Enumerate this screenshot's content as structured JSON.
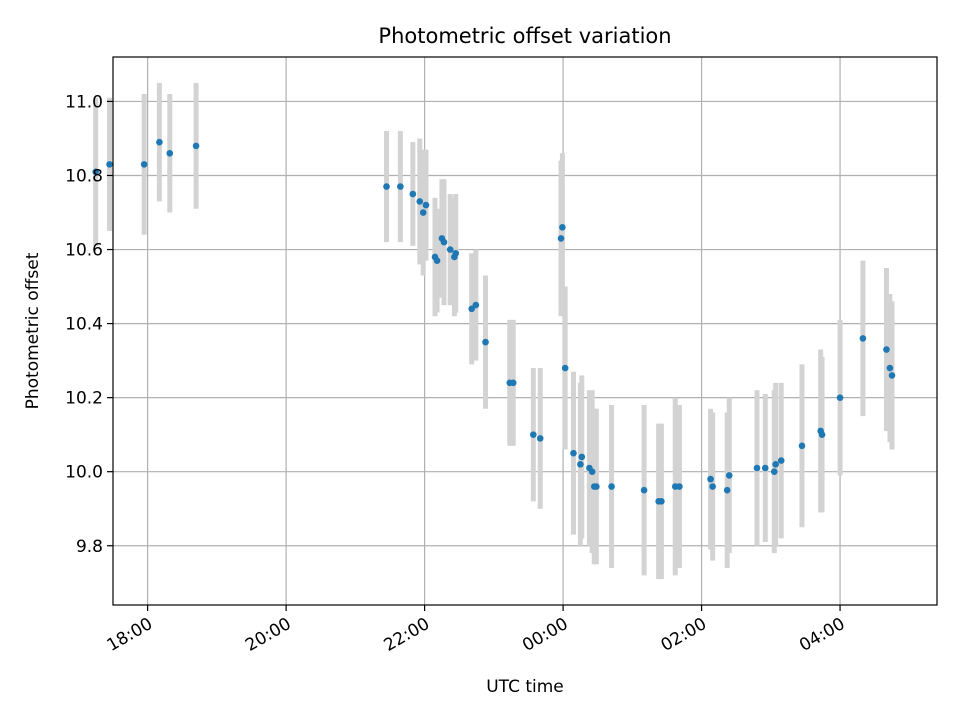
{
  "chart_data": {
    "type": "scatter",
    "title": "Photometric offset variation",
    "xlabel": "UTC time",
    "ylabel": "Photometric offset",
    "grid": true,
    "x_unit": "hours since 00:00 UTC",
    "xlim": [
      -6.5,
      5.4
    ],
    "ylim": [
      9.64,
      11.12
    ],
    "xticks": [
      {
        "value": -6,
        "label": "18:00"
      },
      {
        "value": -4,
        "label": "20:00"
      },
      {
        "value": -2,
        "label": "22:00"
      },
      {
        "value": 0,
        "label": "00:00"
      },
      {
        "value": 2,
        "label": "02:00"
      },
      {
        "value": 4,
        "label": "04:00"
      }
    ],
    "yticks": [
      {
        "value": 9.8,
        "label": "9.8"
      },
      {
        "value": 10.0,
        "label": "10.0"
      },
      {
        "value": 10.2,
        "label": "10.2"
      },
      {
        "value": 10.4,
        "label": "10.4"
      },
      {
        "value": 10.6,
        "label": "10.6"
      },
      {
        "value": 10.8,
        "label": "10.8"
      },
      {
        "value": 11.0,
        "label": "11.0"
      }
    ],
    "marker_color": "#1f77b4",
    "errorbar_color": "#d3d3d3",
    "points": [
      {
        "x": -6.75,
        "y": 10.81,
        "err": 0.2
      },
      {
        "x": -6.55,
        "y": 10.83,
        "err": 0.18
      },
      {
        "x": -6.05,
        "y": 10.83,
        "err": 0.19
      },
      {
        "x": -5.83,
        "y": 10.89,
        "err": 0.16
      },
      {
        "x": -5.68,
        "y": 10.86,
        "err": 0.16
      },
      {
        "x": -5.3,
        "y": 10.88,
        "err": 0.17
      },
      {
        "x": -2.55,
        "y": 10.77,
        "err": 0.15
      },
      {
        "x": -2.35,
        "y": 10.77,
        "err": 0.15
      },
      {
        "x": -2.17,
        "y": 10.75,
        "err": 0.14
      },
      {
        "x": -2.07,
        "y": 10.73,
        "err": 0.17
      },
      {
        "x": -2.02,
        "y": 10.7,
        "err": 0.17
      },
      {
        "x": -1.98,
        "y": 10.72,
        "err": 0.15
      },
      {
        "x": -1.85,
        "y": 10.58,
        "err": 0.16
      },
      {
        "x": -1.82,
        "y": 10.57,
        "err": 0.14
      },
      {
        "x": -1.75,
        "y": 10.63,
        "err": 0.16
      },
      {
        "x": -1.72,
        "y": 10.62,
        "err": 0.17
      },
      {
        "x": -1.63,
        "y": 10.6,
        "err": 0.15
      },
      {
        "x": -1.57,
        "y": 10.58,
        "err": 0.16
      },
      {
        "x": -1.55,
        "y": 10.59,
        "err": 0.16
      },
      {
        "x": -1.32,
        "y": 10.44,
        "err": 0.15
      },
      {
        "x": -1.26,
        "y": 10.45,
        "err": 0.15
      },
      {
        "x": -1.12,
        "y": 10.35,
        "err": 0.18
      },
      {
        "x": -0.77,
        "y": 10.24,
        "err": 0.17
      },
      {
        "x": -0.72,
        "y": 10.24,
        "err": 0.17
      },
      {
        "x": -0.43,
        "y": 10.1,
        "err": 0.18
      },
      {
        "x": -0.33,
        "y": 10.09,
        "err": 0.19
      },
      {
        "x": -0.03,
        "y": 10.63,
        "err": 0.21
      },
      {
        "x": -0.01,
        "y": 10.66,
        "err": 0.2
      },
      {
        "x": 0.03,
        "y": 10.28,
        "err": 0.22
      },
      {
        "x": 0.15,
        "y": 10.05,
        "err": 0.22
      },
      {
        "x": 0.25,
        "y": 10.02,
        "err": 0.22
      },
      {
        "x": 0.27,
        "y": 10.04,
        "err": 0.22
      },
      {
        "x": 0.38,
        "y": 10.01,
        "err": 0.21
      },
      {
        "x": 0.42,
        "y": 10.0,
        "err": 0.22
      },
      {
        "x": 0.45,
        "y": 9.96,
        "err": 0.21
      },
      {
        "x": 0.48,
        "y": 9.96,
        "err": 0.21
      },
      {
        "x": 0.7,
        "y": 9.96,
        "err": 0.22
      },
      {
        "x": 1.17,
        "y": 9.95,
        "err": 0.23
      },
      {
        "x": 1.38,
        "y": 9.92,
        "err": 0.21
      },
      {
        "x": 1.42,
        "y": 9.92,
        "err": 0.21
      },
      {
        "x": 1.62,
        "y": 9.96,
        "err": 0.24
      },
      {
        "x": 1.68,
        "y": 9.96,
        "err": 0.22
      },
      {
        "x": 2.13,
        "y": 9.98,
        "err": 0.19
      },
      {
        "x": 2.16,
        "y": 9.96,
        "err": 0.2
      },
      {
        "x": 2.37,
        "y": 9.95,
        "err": 0.21
      },
      {
        "x": 2.4,
        "y": 9.99,
        "err": 0.21
      },
      {
        "x": 2.8,
        "y": 10.01,
        "err": 0.21
      },
      {
        "x": 2.92,
        "y": 10.01,
        "err": 0.2
      },
      {
        "x": 3.05,
        "y": 10.0,
        "err": 0.22
      },
      {
        "x": 3.07,
        "y": 10.02,
        "err": 0.22
      },
      {
        "x": 3.15,
        "y": 10.03,
        "err": 0.21
      },
      {
        "x": 3.45,
        "y": 10.07,
        "err": 0.22
      },
      {
        "x": 3.72,
        "y": 10.11,
        "err": 0.22
      },
      {
        "x": 3.74,
        "y": 10.1,
        "err": 0.21
      },
      {
        "x": 4.0,
        "y": 10.2,
        "err": 0.21
      },
      {
        "x": 4.33,
        "y": 10.36,
        "err": 0.21
      },
      {
        "x": 4.67,
        "y": 10.33,
        "err": 0.22
      },
      {
        "x": 4.72,
        "y": 10.28,
        "err": 0.2
      },
      {
        "x": 4.75,
        "y": 10.26,
        "err": 0.2
      }
    ]
  }
}
